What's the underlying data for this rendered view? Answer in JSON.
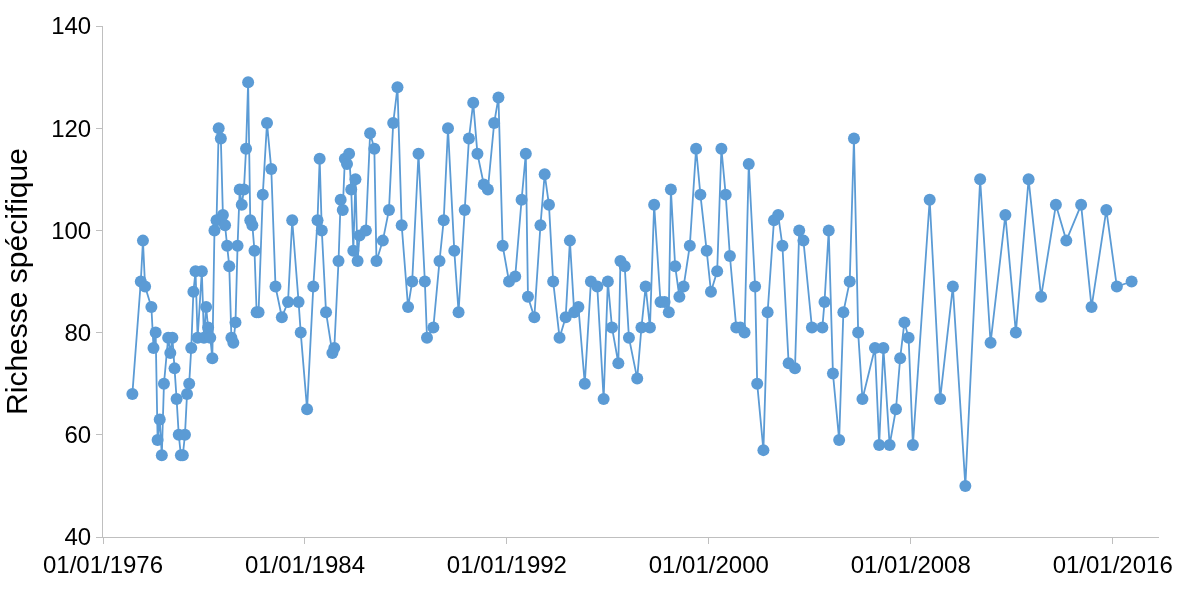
{
  "chart_data": {
    "type": "line",
    "ylabel": "Richesse spécifique",
    "marker": "circle",
    "line_style": "solid",
    "x": [
      "1977-03",
      "1977-07",
      "1977-08",
      "1977-09",
      "1977-12",
      "1978-01",
      "1978-02",
      "1978-03",
      "1978-04",
      "1978-05",
      "1978-06",
      "1978-08",
      "1978-09",
      "1978-10",
      "1978-11",
      "1978-12",
      "1979-01",
      "1979-02",
      "1979-03",
      "1979-04",
      "1979-05",
      "1979-06",
      "1979-07",
      "1979-08",
      "1979-09",
      "1979-10",
      "1979-12",
      "1980-01",
      "1980-02",
      "1980-03",
      "1980-04",
      "1980-05",
      "1980-06",
      "1980-07",
      "1980-08",
      "1980-09",
      "1980-10",
      "1980-11",
      "1980-12",
      "1981-01",
      "1981-02",
      "1981-03",
      "1981-04",
      "1981-05",
      "1981-06",
      "1981-07",
      "1981-08",
      "1981-09",
      "1981-10",
      "1981-11",
      "1981-12",
      "1982-01",
      "1982-02",
      "1982-03",
      "1982-05",
      "1982-07",
      "1982-09",
      "1982-11",
      "1983-02",
      "1983-05",
      "1983-07",
      "1983-10",
      "1983-11",
      "1984-02",
      "1984-05",
      "1984-07",
      "1984-08",
      "1984-09",
      "1984-11",
      "1985-02",
      "1985-03",
      "1985-05",
      "1985-06",
      "1985-07",
      "1985-08",
      "1985-09",
      "1985-10",
      "1985-11",
      "1985-12",
      "1986-01",
      "1986-02",
      "1986-03",
      "1986-06",
      "1986-08",
      "1986-10",
      "1986-11",
      "1987-02",
      "1987-05",
      "1987-07",
      "1987-09",
      "1987-11",
      "1988-02",
      "1988-04",
      "1988-07",
      "1988-10",
      "1988-11",
      "1989-02",
      "1989-05",
      "1989-07",
      "1989-09",
      "1989-12",
      "1990-02",
      "1990-05",
      "1990-07",
      "1990-09",
      "1990-11",
      "1991-02",
      "1991-04",
      "1991-07",
      "1991-09",
      "1991-11",
      "1992-02",
      "1992-05",
      "1992-08",
      "1992-10",
      "1992-11",
      "1993-02",
      "1993-05",
      "1993-07",
      "1993-09",
      "1993-11",
      "1994-02",
      "1994-05",
      "1994-07",
      "1994-09",
      "1994-11",
      "1995-02",
      "1995-05",
      "1995-08",
      "1995-11",
      "1996-01",
      "1996-03",
      "1996-06",
      "1996-07",
      "1996-09",
      "1996-11",
      "1997-03",
      "1997-05",
      "1997-07",
      "1997-09",
      "1997-11",
      "1998-02",
      "1998-04",
      "1998-06",
      "1998-07",
      "1998-09",
      "1998-11",
      "1999-01",
      "1999-04",
      "1999-07",
      "1999-09",
      "1999-12",
      "2000-02",
      "2000-05",
      "2000-07",
      "2000-09",
      "2000-11",
      "2001-02",
      "2001-04",
      "2001-06",
      "2001-08",
      "2001-11",
      "2001-12",
      "2002-03",
      "2002-05",
      "2002-08",
      "2002-10",
      "2002-12",
      "2003-03",
      "2003-06",
      "2003-08",
      "2003-10",
      "2004-02",
      "2004-07",
      "2004-08",
      "2004-10",
      "2004-12",
      "2005-03",
      "2005-05",
      "2005-08",
      "2005-10",
      "2005-12",
      "2006-02",
      "2006-08",
      "2006-10",
      "2006-12",
      "2007-03",
      "2007-06",
      "2007-08",
      "2007-10",
      "2007-12",
      "2008-02",
      "2008-10",
      "2009-03",
      "2009-09",
      "2010-03",
      "2010-10",
      "2011-03",
      "2011-10",
      "2012-03",
      "2012-09",
      "2013-03",
      "2013-10",
      "2014-03",
      "2014-10",
      "2015-03",
      "2015-10",
      "2016-03",
      "2016-10"
    ],
    "series": [
      {
        "color": "#5b9bd5",
        "values": [
          68,
          90,
          98,
          89,
          85,
          77,
          80,
          59,
          63,
          56,
          70,
          79,
          76,
          79,
          73,
          67,
          60,
          56,
          56,
          60,
          68,
          70,
          77,
          88,
          92,
          79,
          92,
          79,
          85,
          81,
          79,
          75,
          100,
          102,
          120,
          118,
          103,
          101,
          97,
          93,
          79,
          78,
          82,
          97,
          108,
          105,
          108,
          116,
          129,
          102,
          101,
          96,
          84,
          84,
          107,
          121,
          112,
          89,
          83,
          86,
          102,
          86,
          80,
          65,
          89,
          102,
          114,
          100,
          84,
          76,
          77,
          94,
          106,
          104,
          114,
          113,
          115,
          108,
          96,
          110,
          94,
          99,
          100,
          119,
          116,
          94,
          98,
          104,
          121,
          128,
          101,
          85,
          90,
          115,
          90,
          79,
          81,
          94,
          102,
          120,
          96,
          84,
          104,
          118,
          125,
          115,
          109,
          108,
          121,
          126,
          97,
          90,
          91,
          106,
          115,
          87,
          83,
          101,
          111,
          105,
          90,
          79,
          83,
          98,
          84,
          85,
          70,
          90,
          89,
          67,
          90,
          81,
          74,
          94,
          93,
          79,
          71,
          81,
          89,
          81,
          105,
          86,
          86,
          84,
          108,
          93,
          87,
          89,
          97,
          116,
          107,
          96,
          88,
          92,
          116,
          107,
          95,
          81,
          81,
          80,
          113,
          89,
          70,
          57,
          84,
          102,
          103,
          97,
          74,
          73,
          100,
          98,
          81,
          81,
          86,
          100,
          72,
          59,
          84,
          90,
          118,
          80,
          67,
          77,
          58,
          77,
          58,
          65,
          75,
          82,
          79,
          58,
          106,
          67,
          89,
          50,
          110,
          78,
          103,
          80,
          110,
          87,
          105,
          98,
          105,
          85,
          104,
          89,
          90
        ]
      }
    ],
    "xlim": [
      "1976-01-01",
      "2017-11-01"
    ],
    "xticks": [
      {
        "value": "1976-01-01",
        "label": "01/01/1976"
      },
      {
        "value": "1984-01-01",
        "label": "01/01/1984"
      },
      {
        "value": "1992-01-01",
        "label": "01/01/1992"
      },
      {
        "value": "2000-01-01",
        "label": "01/01/2000"
      },
      {
        "value": "2008-01-01",
        "label": "01/01/2008"
      },
      {
        "value": "2016-01-01",
        "label": "01/01/2016"
      }
    ],
    "ylim": [
      40,
      140
    ],
    "yticks": [
      40,
      60,
      80,
      100,
      120,
      140
    ]
  }
}
